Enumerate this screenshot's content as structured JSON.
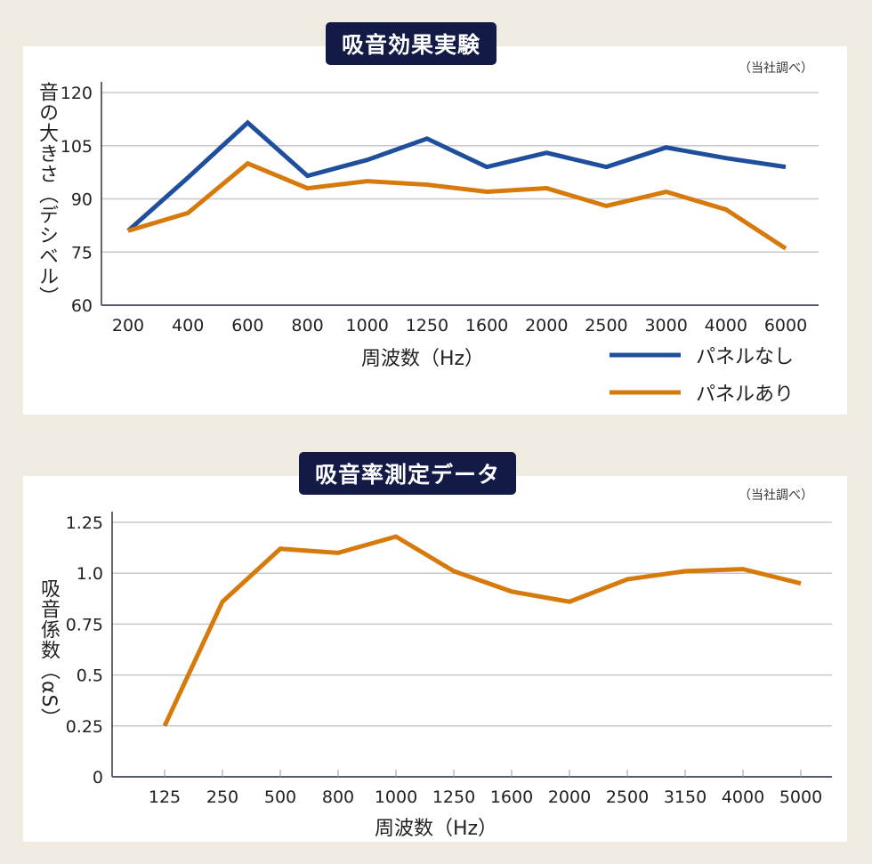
{
  "chart_data": [
    {
      "type": "line",
      "title": "吸音効果実験",
      "note": "（当社調べ）",
      "xlabel": "周波数（Hz）",
      "ylabel": "音の大きさ（デシベル）",
      "categories": [
        "200",
        "400",
        "600",
        "800",
        "1000",
        "1250",
        "1600",
        "2000",
        "2500",
        "3000",
        "4000",
        "6000"
      ],
      "yticks": [
        "60",
        "75",
        "90",
        "105",
        "120"
      ],
      "ylim": [
        60,
        120
      ],
      "grid": true,
      "legend_position": "bottom-right",
      "series": [
        {
          "name": "パネルなし",
          "color": "#1f4e9c",
          "values": [
            81,
            96,
            111.5,
            96.5,
            101,
            107,
            99,
            103,
            99,
            104.5,
            101.5,
            99
          ]
        },
        {
          "name": "パネルあり",
          "color": "#d67a0c",
          "values": [
            81,
            86,
            100,
            93,
            95,
            94,
            92,
            93,
            88,
            92,
            87,
            76
          ]
        }
      ]
    },
    {
      "type": "line",
      "title": "吸音率測定データ",
      "note": "（当社調べ）",
      "xlabel": "周波数（Hz）",
      "ylabel": "吸音係数（αS）",
      "categories": [
        "125",
        "250",
        "500",
        "800",
        "1000",
        "1250",
        "1600",
        "2000",
        "2500",
        "3150",
        "4000",
        "5000"
      ],
      "yticks": [
        "0",
        "0.25",
        "0.5",
        "0.75",
        "1.0",
        "1.25"
      ],
      "ylim": [
        0,
        1.25
      ],
      "grid": true,
      "series": [
        {
          "name": "吸音係数",
          "color": "#d67a0c",
          "values": [
            0.25,
            0.86,
            1.12,
            1.1,
            1.18,
            1.01,
            0.91,
            0.86,
            0.97,
            1.01,
            1.02,
            0.95
          ]
        }
      ]
    }
  ]
}
